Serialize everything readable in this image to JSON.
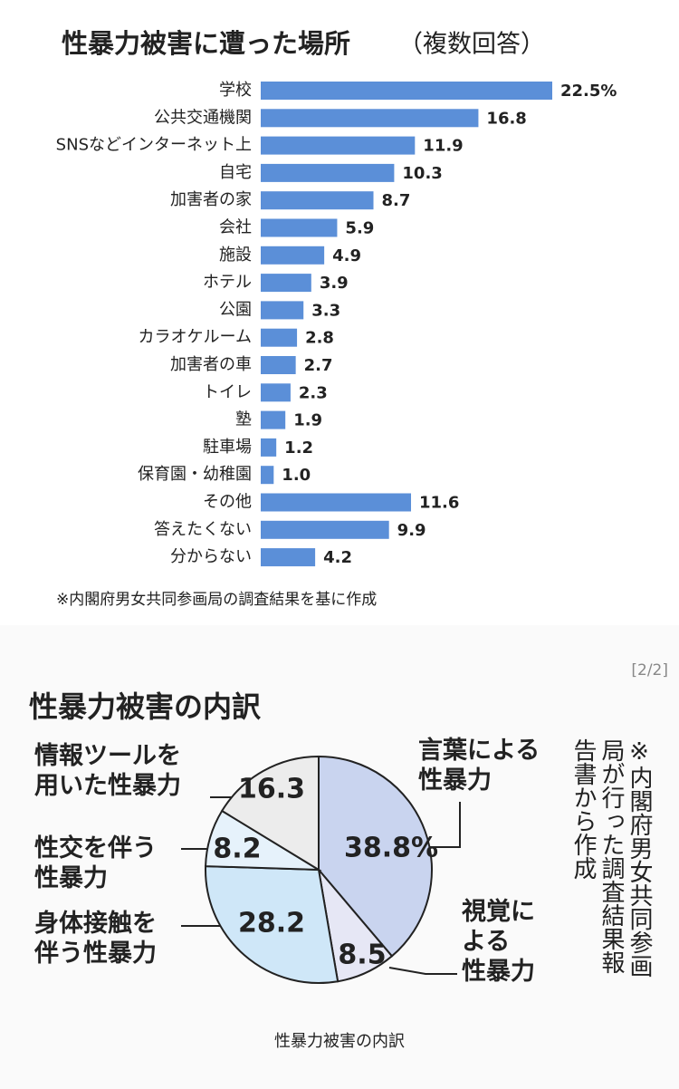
{
  "charts": [
    {
      "chart_data": {
        "type": "hbar",
        "title": "性暴力被害に遭った場所",
        "subtitle": "（複数回答）",
        "categories": [
          "学校",
          "公共交通機関",
          "SNSなどインターネット上",
          "自宅",
          "加害者の家",
          "会社",
          "施設",
          "ホテル",
          "公園",
          "カラオケルーム",
          "加害者の車",
          "トイレ",
          "塾",
          "駐車場",
          "保育園・幼稚園",
          "その他",
          "答えたくない",
          "分からない"
        ],
        "values": [
          22.5,
          16.8,
          11.9,
          10.3,
          8.7,
          5.9,
          4.9,
          3.9,
          3.3,
          2.8,
          2.7,
          2.3,
          1.9,
          1.2,
          1.0,
          11.6,
          9.9,
          4.2
        ],
        "value_labels": [
          "22.5%",
          "16.8",
          "11.9",
          "10.3",
          "8.7",
          "5.9",
          "4.9",
          "3.9",
          "3.3",
          "2.8",
          "2.7",
          "2.3",
          "1.9",
          "1.2",
          "1.0",
          "11.6",
          "9.9",
          "4.2"
        ],
        "color": "#5b8fd8",
        "note": "※内閣府男女共同参画局の調査結果を基に作成"
      }
    },
    {
      "page_indicator": "[2/2]",
      "chart_data": {
        "type": "pie",
        "title": "性暴力被害の内訳",
        "categories": [
          "言葉による\n性暴力",
          "視覚に\nよる\n性暴力",
          "身体接触を\n伴う性暴力",
          "性交を伴う\n性暴力",
          "情報ツールを\n用いた性暴力"
        ],
        "values": [
          38.8,
          8.5,
          28.2,
          8.2,
          16.3
        ],
        "value_labels": [
          "38.8%",
          "8.5",
          "28.2",
          "8.2",
          "16.3"
        ],
        "colors": [
          "#c9d4ef",
          "#e6e7f5",
          "#cfe7f8",
          "#e6f2fb",
          "#ececec"
        ],
        "note": "※内閣府男女共同参画局が行った調査結果報告書から作成",
        "caption": "性暴力被害の内訳"
      }
    }
  ]
}
